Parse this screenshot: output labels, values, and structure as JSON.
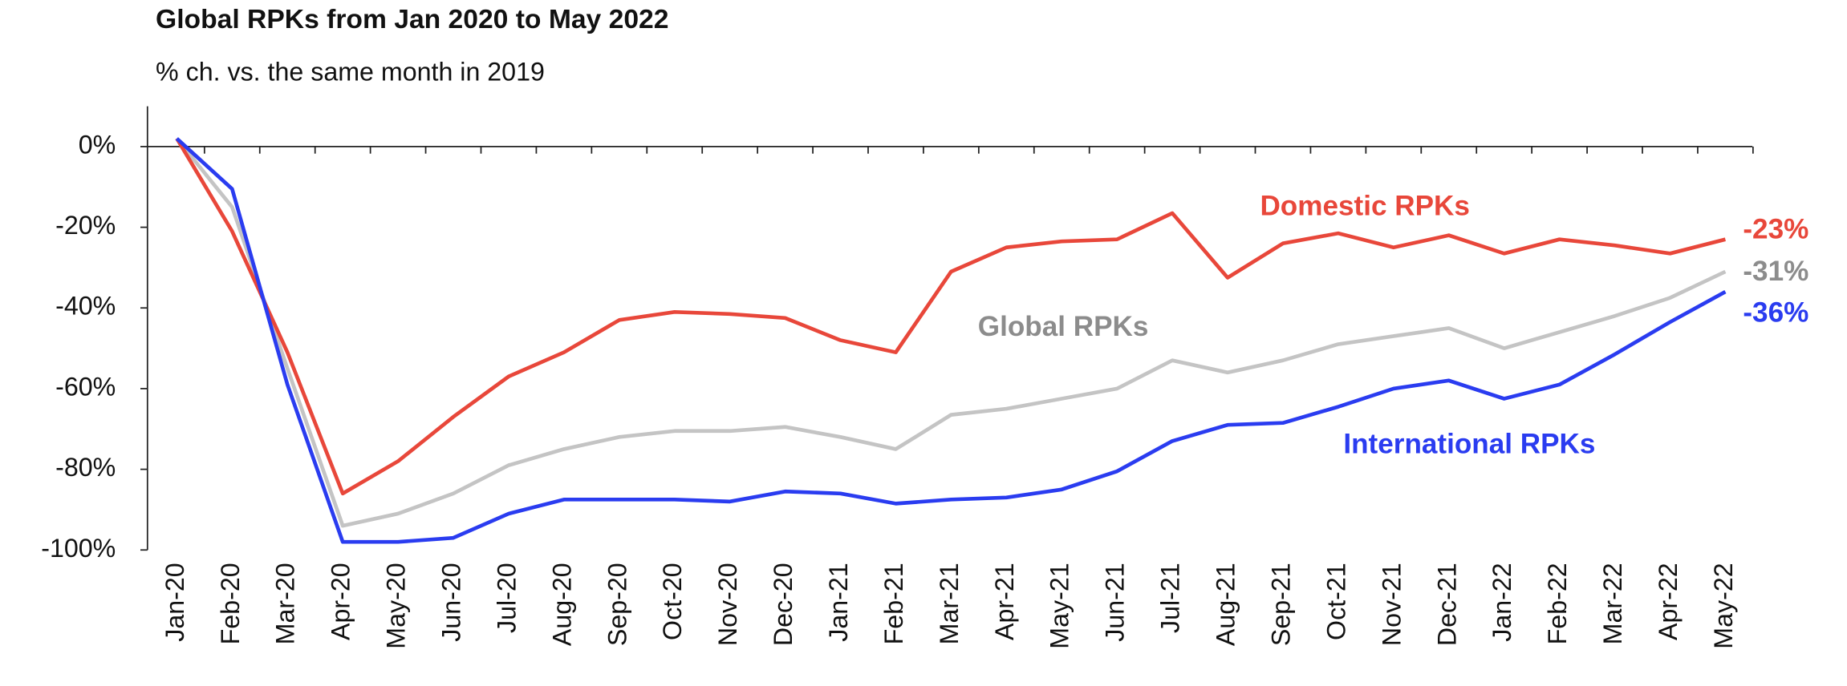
{
  "chart_data": {
    "type": "line",
    "title": "Global RPKs from Jan 2020 to May 2022",
    "subtitle": "% ch. vs. the same month in 2019",
    "categories": [
      "Jan-20",
      "Feb-20",
      "Mar-20",
      "Apr-20",
      "May-20",
      "Jun-20",
      "Jul-20",
      "Aug-20",
      "Sep-20",
      "Oct-20",
      "Nov-20",
      "Dec-20",
      "Jan-21",
      "Feb-21",
      "Mar-21",
      "Apr-21",
      "May-21",
      "Jun-21",
      "Jul-21",
      "Aug-21",
      "Sep-21",
      "Oct-21",
      "Nov-21",
      "Dec-21",
      "Jan-22",
      "Feb-22",
      "Mar-22",
      "Apr-22",
      "May-22"
    ],
    "series": [
      {
        "name": "Global RPKs",
        "color": "#c4c4c4",
        "label_color": "#8c8c8c",
        "values": [
          2,
          -15,
          -55,
          -94,
          -91,
          -86,
          -79,
          -75,
          -72,
          -70.5,
          -70.5,
          -69.5,
          -72,
          -75,
          -66.5,
          -65,
          -62.5,
          -60,
          -53,
          -56,
          -53,
          -49,
          -47,
          -45,
          -50,
          -46,
          -42,
          -37.5,
          -31
        ],
        "value_labels": [
          null,
          null,
          null,
          null,
          null,
          null,
          null,
          null,
          null,
          null,
          null,
          null,
          null,
          null,
          null,
          null,
          null,
          null,
          null,
          null,
          null,
          null,
          null,
          null,
          null,
          null,
          null,
          null,
          "-31%"
        ]
      },
      {
        "name": "Domestic RPKs",
        "color": "#e8473a",
        "label_color": "#e8473a",
        "values": [
          2,
          -21,
          -51,
          -86,
          -78,
          -67,
          -57,
          -51,
          -43,
          -41,
          -41.5,
          -42.5,
          -48,
          -51,
          -31,
          -25,
          -23.5,
          -23,
          -16.5,
          -32.5,
          -24,
          -21.5,
          -25,
          -22,
          -26.5,
          -23,
          -24.5,
          -26.5,
          -23
        ],
        "value_labels": [
          null,
          null,
          null,
          null,
          null,
          null,
          null,
          null,
          null,
          null,
          null,
          null,
          null,
          null,
          null,
          null,
          null,
          null,
          null,
          null,
          null,
          null,
          null,
          null,
          null,
          null,
          null,
          null,
          "-23%"
        ]
      },
      {
        "name": "International RPKs",
        "color": "#2a3cf0",
        "label_color": "#2a3cf0",
        "values": [
          2,
          -10.5,
          -59,
          -98,
          -98,
          -97,
          -91,
          -87.5,
          -87.5,
          -87.5,
          -88,
          -85.5,
          -86,
          -88.5,
          -87.5,
          -87,
          -85,
          -80.5,
          -73,
          -69,
          -68.5,
          -64.5,
          -60,
          -58,
          -62.5,
          -59,
          -51.5,
          -43.5,
          -36
        ],
        "value_labels": [
          null,
          null,
          null,
          null,
          null,
          null,
          null,
          null,
          null,
          null,
          null,
          null,
          null,
          null,
          null,
          null,
          null,
          null,
          null,
          null,
          null,
          null,
          null,
          null,
          null,
          null,
          null,
          null,
          "-36%"
        ]
      }
    ],
    "ylim": [
      -100,
      10
    ],
    "yticks": [
      {
        "value": 0,
        "label": "0%"
      },
      {
        "value": -20,
        "label": "-20%"
      },
      {
        "value": -40,
        "label": "-40%"
      },
      {
        "value": -60,
        "label": "-60%"
      },
      {
        "value": -80,
        "label": "-80%"
      },
      {
        "value": -100,
        "label": "-100%"
      }
    ],
    "grid": false
  }
}
